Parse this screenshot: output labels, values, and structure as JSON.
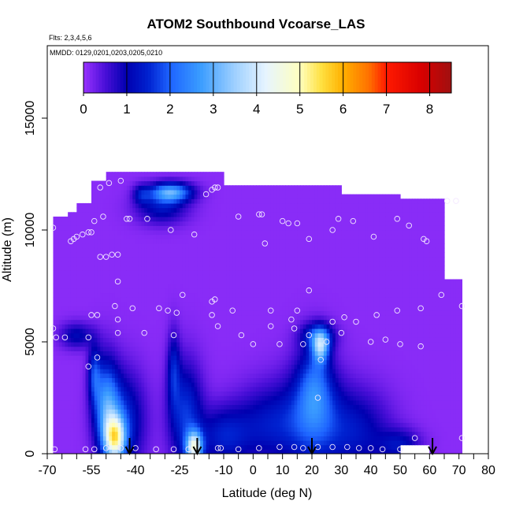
{
  "chart_data": {
    "type": "heatmap",
    "title": "ATOM2 Southbound Vcoarse_LAS",
    "subtitle_lines": [
      "Flts: 2,3,4,5,6",
      "MMDD: 0129,0201,0203,0205,0210"
    ],
    "xlabel": "Latitude (deg N)",
    "ylabel": "Altitude (m)",
    "xlim": [
      -70,
      80
    ],
    "ylim": [
      0,
      18000
    ],
    "x_ticks": [
      -70,
      -65,
      -60,
      -55,
      -50,
      -45,
      -40,
      -35,
      -30,
      -25,
      -20,
      -15,
      -10,
      -5,
      0,
      5,
      10,
      15,
      20,
      25,
      30,
      35,
      40,
      45,
      50,
      55,
      60,
      65,
      70,
      75,
      80
    ],
    "x_tick_labels": [
      "-70",
      "-55",
      "-40",
      "-25",
      "-10",
      "0",
      "10",
      "20",
      "30",
      "40",
      "50",
      "60",
      "70",
      "80"
    ],
    "x_label_values": [
      -70,
      -55,
      -40,
      -25,
      -10,
      0,
      10,
      20,
      30,
      40,
      50,
      60,
      70,
      80
    ],
    "y_ticks": [
      0,
      5000,
      10000,
      15000
    ],
    "y_tick_labels": [
      "0",
      "5000",
      "10000",
      "15000"
    ],
    "colorbar": {
      "min": 0,
      "max": 8.5,
      "ticks": [
        0,
        1,
        2,
        3,
        4,
        5,
        6,
        7,
        8
      ],
      "tick_labels": [
        "0",
        "1",
        "2",
        "3",
        "4",
        "5",
        "6",
        "7",
        "8"
      ],
      "stops": [
        {
          "value": 0,
          "color": "#9933ff"
        },
        {
          "value": 0.5,
          "color": "#4a0fd8"
        },
        {
          "value": 1,
          "color": "#0000b0"
        },
        {
          "value": 1.5,
          "color": "#0022d0"
        },
        {
          "value": 2,
          "color": "#1e64ff"
        },
        {
          "value": 2.7,
          "color": "#3a9cff"
        },
        {
          "value": 3.5,
          "color": "#9fd0ff"
        },
        {
          "value": 4.2,
          "color": "#e6f4ff"
        },
        {
          "value": 5,
          "color": "#ffffbf"
        },
        {
          "value": 5.5,
          "color": "#ffe040"
        },
        {
          "value": 6,
          "color": "#ffb000"
        },
        {
          "value": 6.6,
          "color": "#ff7000"
        },
        {
          "value": 7,
          "color": "#ff1a00"
        },
        {
          "value": 7.8,
          "color": "#d80000"
        },
        {
          "value": 8.5,
          "color": "#a01010"
        }
      ]
    },
    "background_value": 0.1,
    "coverage_ranges": [
      {
        "lat": [
          -68,
          -63
        ],
        "alt": [
          0,
          10500
        ]
      },
      {
        "lat": [
          -63,
          -60
        ],
        "alt": [
          0,
          10700
        ]
      },
      {
        "lat": [
          -60,
          -55
        ],
        "alt": [
          0,
          11200
        ]
      },
      {
        "lat": [
          -55,
          -50
        ],
        "alt": [
          0,
          12100
        ]
      },
      {
        "lat": [
          -50,
          -25
        ],
        "alt": [
          0,
          12500
        ]
      },
      {
        "lat": [
          -25,
          -10
        ],
        "alt": [
          0,
          12500
        ]
      },
      {
        "lat": [
          -10,
          5
        ],
        "alt": [
          0,
          12000
        ]
      },
      {
        "lat": [
          5,
          30
        ],
        "alt": [
          0,
          12000
        ]
      },
      {
        "lat": [
          30,
          50
        ],
        "alt": [
          0,
          11600
        ]
      },
      {
        "lat": [
          50,
          60
        ],
        "alt": [
          0,
          11300
        ]
      },
      {
        "lat": [
          60,
          65
        ],
        "alt": [
          0,
          11300
        ]
      },
      {
        "lat": [
          65,
          71
        ],
        "alt": [
          0,
          7700
        ]
      }
    ],
    "blobs": [
      {
        "lat": -47,
        "alt": 700,
        "slat": 2.5,
        "salt": 700,
        "v": 3.8
      },
      {
        "lat": -50,
        "alt": 2200,
        "slat": 3,
        "salt": 1400,
        "v": 2.2
      },
      {
        "lat": -54,
        "alt": 3600,
        "slat": 1.5,
        "salt": 900,
        "v": 1.3
      },
      {
        "lat": -44,
        "alt": 1500,
        "slat": 5,
        "salt": 1500,
        "v": 1.4
      },
      {
        "lat": -20,
        "alt": 300,
        "slat": 2,
        "salt": 500,
        "v": 3.6
      },
      {
        "lat": -23,
        "alt": 1800,
        "slat": 4,
        "salt": 1600,
        "v": 1.5
      },
      {
        "lat": -27,
        "alt": 3800,
        "slat": 1.5,
        "salt": 1200,
        "v": 1.1
      },
      {
        "lat": -10,
        "alt": 800,
        "slat": 6,
        "salt": 900,
        "v": 1.2
      },
      {
        "lat": 5,
        "alt": 1300,
        "slat": 8,
        "salt": 1200,
        "v": 1.1
      },
      {
        "lat": 20,
        "alt": 1600,
        "slat": 7,
        "salt": 1600,
        "v": 1.5
      },
      {
        "lat": 21,
        "alt": 3200,
        "slat": 4,
        "salt": 1300,
        "v": 1.3
      },
      {
        "lat": 23,
        "alt": 4800,
        "slat": 2,
        "salt": 500,
        "v": 2.6
      },
      {
        "lat": 22,
        "alt": 5300,
        "slat": 4,
        "salt": 400,
        "v": 1.3
      },
      {
        "lat": 35,
        "alt": 1000,
        "slat": 8,
        "salt": 1300,
        "v": 1.1
      },
      {
        "lat": 50,
        "alt": 400,
        "slat": 5,
        "salt": 500,
        "v": 1.0
      },
      {
        "lat": -60,
        "alt": 5300,
        "slat": 4,
        "salt": 400,
        "v": 1.0
      },
      {
        "lat": -28,
        "alt": 11700,
        "slat": 5,
        "salt": 300,
        "v": 2.7
      },
      {
        "lat": -31,
        "alt": 11000,
        "slat": 6,
        "salt": 500,
        "v": 1.1
      },
      {
        "lat": -38,
        "alt": 11600,
        "slat": 2,
        "salt": 300,
        "v": 0.9
      }
    ],
    "no_data": [
      {
        "lat": [
          50,
          60
        ],
        "alt": [
          0,
          400
        ]
      }
    ],
    "arrows_lat": [
      -42,
      -19,
      20,
      61
    ],
    "points": [
      [
        -67.5,
        200
      ],
      [
        -57,
        200
      ],
      [
        -54,
        200
      ],
      [
        -50,
        250
      ],
      [
        -45,
        250
      ],
      [
        -40,
        250
      ],
      [
        -33,
        200
      ],
      [
        -27,
        200
      ],
      [
        -22,
        200
      ],
      [
        -12,
        250
      ],
      [
        -11,
        250
      ],
      [
        -5,
        200
      ],
      [
        2,
        250
      ],
      [
        9,
        300
      ],
      [
        14,
        300
      ],
      [
        17,
        250
      ],
      [
        22,
        300
      ],
      [
        27,
        300
      ],
      [
        32,
        300
      ],
      [
        36,
        250
      ],
      [
        40,
        250
      ],
      [
        44,
        200
      ],
      [
        50,
        200
      ],
      [
        55,
        700
      ],
      [
        71,
        700
      ],
      [
        -56,
        3900
      ],
      [
        -53,
        4300
      ],
      [
        -67,
        5200
      ],
      [
        -64,
        5200
      ],
      [
        -56,
        5200
      ],
      [
        -46,
        5400
      ],
      [
        -37,
        5400
      ],
      [
        -27,
        5300
      ],
      [
        -14,
        6200
      ],
      [
        -12,
        5700
      ],
      [
        -4,
        5300
      ],
      [
        0,
        4900
      ],
      [
        6,
        5700
      ],
      [
        9,
        4900
      ],
      [
        14,
        5600
      ],
      [
        17,
        4900
      ],
      [
        19,
        5300
      ],
      [
        23,
        4200
      ],
      [
        25,
        5000
      ],
      [
        27,
        5900
      ],
      [
        30,
        5400
      ],
      [
        35,
        5900
      ],
      [
        40,
        5000
      ],
      [
        45,
        5100
      ],
      [
        50,
        4900
      ],
      [
        57,
        4800
      ],
      [
        22,
        2500
      ],
      [
        -68,
        5600
      ],
      [
        -55,
        6200
      ],
      [
        -53,
        6200
      ],
      [
        -47,
        6600
      ],
      [
        -46,
        6000
      ],
      [
        -41,
        6500
      ],
      [
        -32,
        6500
      ],
      [
        -29,
        6400
      ],
      [
        -26,
        6300
      ],
      [
        -14,
        6800
      ],
      [
        -13,
        6900
      ],
      [
        -7,
        6400
      ],
      [
        6,
        6400
      ],
      [
        13,
        6000
      ],
      [
        15,
        6400
      ],
      [
        19,
        7300
      ],
      [
        31,
        6100
      ],
      [
        42,
        6200
      ],
      [
        49,
        6400
      ],
      [
        57,
        6500
      ],
      [
        64,
        7100
      ],
      [
        71,
        6600
      ],
      [
        -46,
        7700
      ],
      [
        -24,
        7100
      ],
      [
        -52,
        8800
      ],
      [
        -50,
        8800
      ],
      [
        -48,
        8900
      ],
      [
        -46,
        8900
      ],
      [
        -62,
        9500
      ],
      [
        -61,
        9600
      ],
      [
        -60,
        9700
      ],
      [
        -58,
        9800
      ],
      [
        -56,
        9900
      ],
      [
        -55,
        9900
      ],
      [
        -68,
        10100
      ],
      [
        -54,
        10400
      ],
      [
        -51,
        10600
      ],
      [
        -43,
        10500
      ],
      [
        -42,
        10500
      ],
      [
        -36,
        10500
      ],
      [
        -28,
        10000
      ],
      [
        -20,
        9800
      ],
      [
        -5,
        10600
      ],
      [
        2,
        10700
      ],
      [
        3,
        10700
      ],
      [
        4,
        9400
      ],
      [
        10,
        10400
      ],
      [
        12,
        10300
      ],
      [
        15,
        10300
      ],
      [
        19,
        9600
      ],
      [
        27,
        10000
      ],
      [
        29,
        10500
      ],
      [
        34,
        10400
      ],
      [
        41,
        9700
      ],
      [
        49,
        10500
      ],
      [
        53,
        10200
      ],
      [
        58,
        9600
      ],
      [
        59,
        9500
      ],
      [
        66,
        11300
      ],
      [
        69,
        11300
      ],
      [
        -52,
        11900
      ],
      [
        -49,
        12100
      ],
      [
        -45,
        12200
      ],
      [
        -16,
        11600
      ],
      [
        -14,
        11800
      ],
      [
        -13,
        11900
      ],
      [
        -12,
        11900
      ]
    ]
  }
}
